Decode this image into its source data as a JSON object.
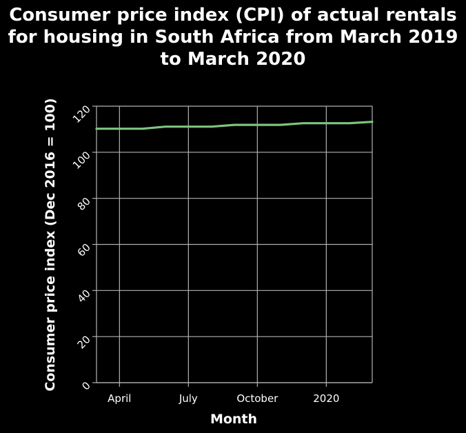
{
  "chart_data": {
    "type": "line",
    "title": "Consumer price index (CPI) of actual rentals for housing in South Africa from March 2019 to March 2020",
    "title_lines": [
      "Consumer price index (CPI) of actual rentals",
      "for housing in South Africa from March 2019",
      "to March 2020"
    ],
    "xlabel": "Month",
    "ylabel": "Consumer price index (Dec 2016 = 100)",
    "x": [
      "2019-03",
      "2019-04",
      "2019-05",
      "2019-06",
      "2019-07",
      "2019-08",
      "2019-09",
      "2019-10",
      "2019-11",
      "2019-12",
      "2020-01",
      "2020-02",
      "2020-03"
    ],
    "x_ticks": [
      {
        "label": "April",
        "x": "2019-04"
      },
      {
        "label": "July",
        "x": "2019-07"
      },
      {
        "label": "October",
        "x": "2019-10"
      },
      {
        "label": "2020",
        "x": "2020-01"
      }
    ],
    "series": [
      {
        "values": [
          110.2,
          110.2,
          110.2,
          111.1,
          111.1,
          111.1,
          111.9,
          111.9,
          111.9,
          112.6,
          112.6,
          112.6,
          113.2
        ],
        "color": "#7fc47f"
      }
    ],
    "ylim": [
      0,
      120
    ],
    "y_ticks": [
      0,
      20,
      40,
      60,
      80,
      100,
      120
    ],
    "grid": true,
    "legend": "none",
    "colors": {
      "background": "#000000",
      "grid": "#b3b3b3",
      "text": "#ffffff"
    }
  }
}
